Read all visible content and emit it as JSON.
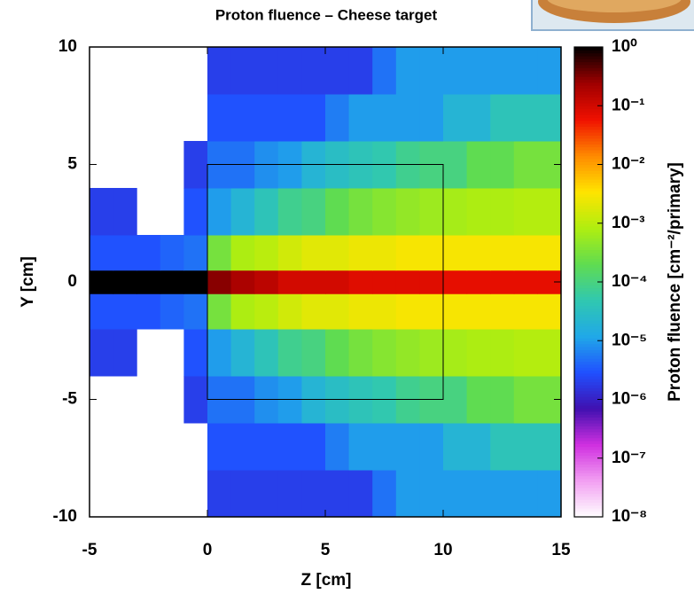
{
  "chart_data": {
    "type": "heatmap",
    "title": "Proton fluence – Cheese target",
    "xlabel": "Z [cm]",
    "ylabel": "Y [cm]",
    "zlabel": "Proton fluence [cm⁻²/primary]",
    "xlim": [
      -5,
      15
    ],
    "ylim": [
      -10,
      10
    ],
    "xticks": [
      -5,
      0,
      5,
      10,
      15
    ],
    "yticks": [
      -10,
      -5,
      0,
      5,
      10
    ],
    "zlim": [
      1e-08,
      1
    ],
    "zscale": "log",
    "zticks": [
      {
        "value": 1,
        "label": "10⁰"
      },
      {
        "value": 0.1,
        "label": "10⁻¹"
      },
      {
        "value": 0.01,
        "label": "10⁻²"
      },
      {
        "value": 0.001,
        "label": "10⁻³"
      },
      {
        "value": 0.0001,
        "label": "10⁻⁴"
      },
      {
        "value": 1e-05,
        "label": "10⁻⁵"
      },
      {
        "value": 1e-06,
        "label": "10⁻⁶"
      },
      {
        "value": 1e-07,
        "label": "10⁻⁷"
      },
      {
        "value": 1e-08,
        "label": "10⁻⁸"
      }
    ],
    "colormap": [
      "#ffffff",
      "#f2a0f2",
      "#d030e0",
      "#4010b0",
      "#2050ff",
      "#20a8e8",
      "#30c8b0",
      "#60dc50",
      "#b0ee10",
      "#ffe400",
      "#ff8a00",
      "#f01000",
      "#a00000",
      "#000000"
    ],
    "target_box": {
      "x": [
        0,
        10
      ],
      "y": [
        -5,
        5
      ]
    },
    "xbins": [
      -5,
      -4,
      -3,
      -2,
      -1,
      0,
      1,
      2,
      3,
      4,
      5,
      6,
      7,
      8,
      9,
      10,
      11,
      12,
      13,
      14,
      15
    ],
    "ybins": [
      -10,
      -8,
      -6,
      -4,
      -2,
      -0.5,
      0.5,
      2,
      4,
      6,
      8,
      10
    ],
    "values": [
      [
        null,
        null,
        null,
        null,
        null,
        2e-06,
        2e-06,
        2e-06,
        2e-06,
        2e-06,
        2e-06,
        2e-06,
        5e-06,
        1e-05,
        1e-05,
        1e-05,
        1e-05,
        1e-05,
        1e-05,
        1e-05
      ],
      [
        null,
        null,
        null,
        null,
        null,
        3e-06,
        3e-06,
        3e-06,
        3e-06,
        3e-06,
        6e-06,
        1e-05,
        1e-05,
        1e-05,
        1e-05,
        2e-05,
        2e-05,
        4e-05,
        4e-05,
        4e-05
      ],
      [
        null,
        null,
        null,
        null,
        2e-06,
        5e-06,
        5e-06,
        8e-06,
        1e-05,
        2e-05,
        3e-05,
        4e-05,
        5e-05,
        8e-05,
        0.0001,
        0.0001,
        0.0002,
        0.0002,
        0.0003,
        0.0003
      ],
      [
        2e-06,
        2e-06,
        null,
        null,
        3e-06,
        1e-05,
        2e-05,
        4e-05,
        8e-05,
        0.0001,
        0.0002,
        0.0003,
        0.0004,
        0.0005,
        0.0006,
        0.0007,
        0.0008,
        0.0008,
        0.0009,
        0.0009
      ],
      [
        3e-06,
        3e-06,
        3e-06,
        4e-06,
        5e-06,
        0.0003,
        0.0008,
        0.001,
        0.0015,
        0.002,
        0.002,
        0.0025,
        0.0025,
        0.003,
        0.003,
        0.003,
        0.003,
        0.003,
        0.003,
        0.003
      ],
      [
        1,
        1,
        1,
        1,
        1,
        0.3,
        0.2,
        0.15,
        0.1,
        0.1,
        0.1,
        0.08,
        0.08,
        0.08,
        0.08,
        0.07,
        0.07,
        0.07,
        0.07,
        0.07
      ],
      [
        3e-06,
        3e-06,
        3e-06,
        4e-06,
        5e-06,
        0.0003,
        0.0008,
        0.001,
        0.0015,
        0.002,
        0.002,
        0.0025,
        0.0025,
        0.003,
        0.003,
        0.003,
        0.003,
        0.003,
        0.003,
        0.003
      ],
      [
        2e-06,
        2e-06,
        null,
        null,
        3e-06,
        1e-05,
        2e-05,
        4e-05,
        8e-05,
        0.0001,
        0.0002,
        0.0003,
        0.0004,
        0.0005,
        0.0006,
        0.0007,
        0.0008,
        0.0008,
        0.0009,
        0.0009
      ],
      [
        null,
        null,
        null,
        null,
        2e-06,
        5e-06,
        5e-06,
        8e-06,
        1e-05,
        2e-05,
        3e-05,
        4e-05,
        5e-05,
        8e-05,
        0.0001,
        0.0001,
        0.0002,
        0.0002,
        0.0003,
        0.0003
      ],
      [
        null,
        null,
        null,
        null,
        null,
        3e-06,
        3e-06,
        3e-06,
        3e-06,
        3e-06,
        6e-06,
        1e-05,
        1e-05,
        1e-05,
        1e-05,
        2e-05,
        2e-05,
        4e-05,
        4e-05,
        4e-05
      ],
      [
        null,
        null,
        null,
        null,
        null,
        2e-06,
        2e-06,
        2e-06,
        2e-06,
        2e-06,
        2e-06,
        2e-06,
        5e-06,
        1e-05,
        1e-05,
        1e-05,
        1e-05,
        1e-05,
        1e-05,
        1e-05
      ]
    ]
  }
}
